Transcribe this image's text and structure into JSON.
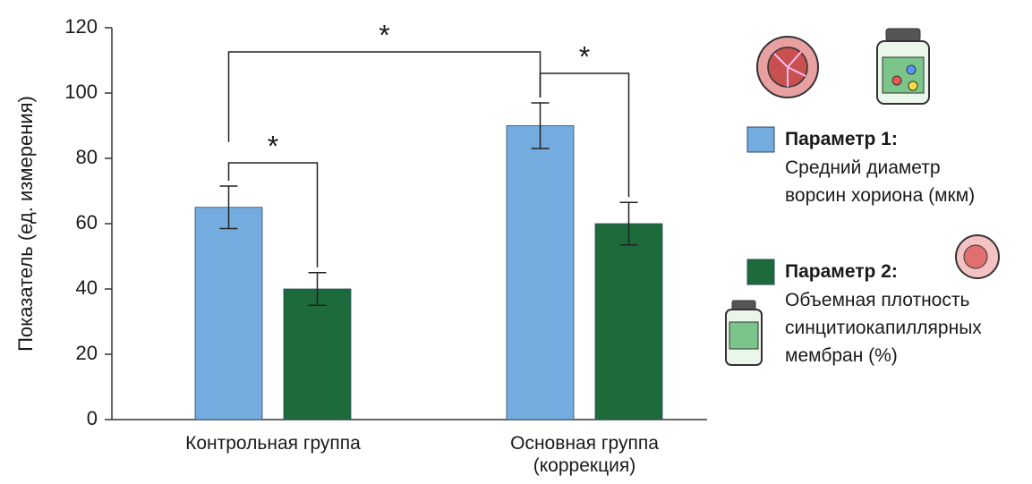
{
  "chart_data": {
    "type": "bar",
    "categories": [
      "Контрольная группа",
      "Основная группа\n(коррекция)"
    ],
    "y_label": "Показатель (ед. измерения)",
    "ylim": [
      0,
      120
    ],
    "yticks": [
      0,
      20,
      40,
      60,
      80,
      100,
      120
    ],
    "grid": false,
    "series": [
      {
        "name": "Параметр 1:",
        "description": "Средний диаметр\nворсин хориона (мкм)",
        "color": "#74ace0",
        "values": [
          65,
          90
        ],
        "errors": [
          6.5,
          7
        ]
      },
      {
        "name": "Параметр 2:",
        "description": "Объемная плотность\nсинцитиокапиллярных\nмембран (%)",
        "color": "#1d6b3a",
        "values": [
          40,
          60
        ],
        "errors": [
          5,
          6.5
        ]
      }
    ],
    "annotations": [
      "*",
      "*",
      "*"
    ],
    "legend": "right"
  }
}
